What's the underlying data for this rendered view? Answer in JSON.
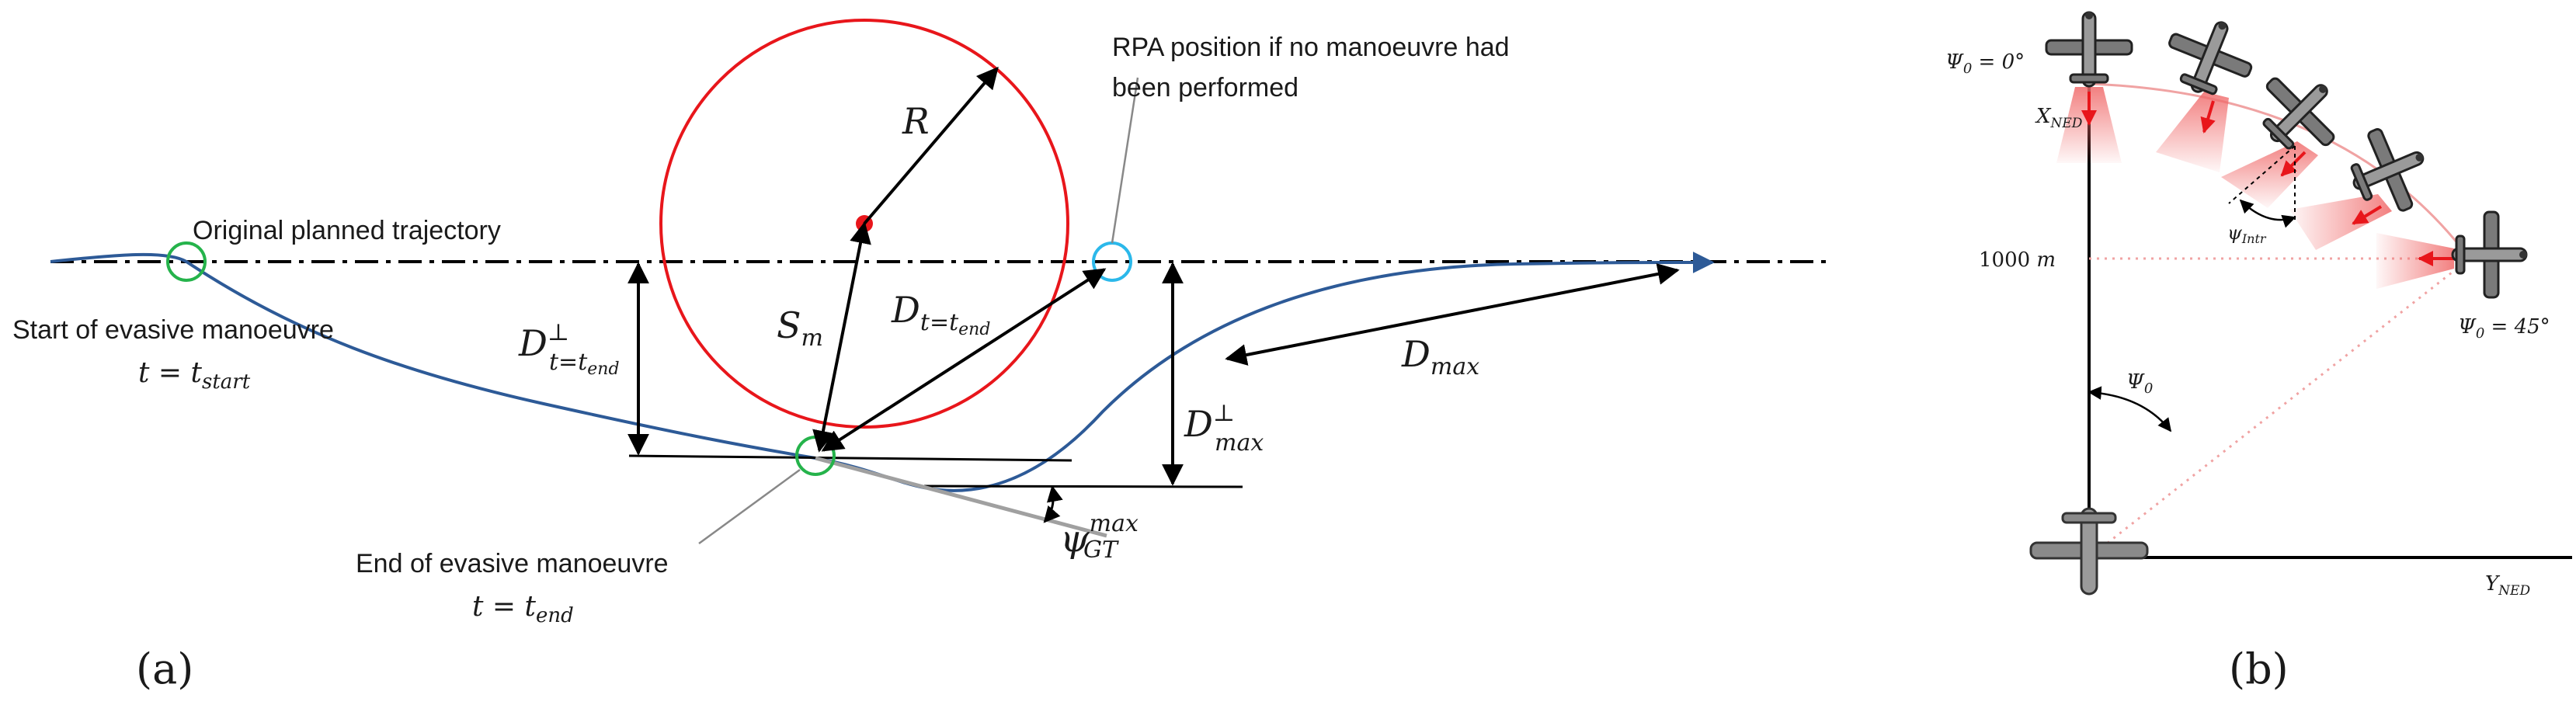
{
  "panel_a": {
    "label": "(a)",
    "original_trajectory": "Original planned trajectory",
    "start": {
      "line1": "Start of evasive manoeuvre",
      "line2": "t = t",
      "sub": "start"
    },
    "end": {
      "line1": "End of evasive manoeuvre",
      "line2": "t = t",
      "sub": "end"
    },
    "rpa_note": {
      "line1": "RPA position if no manoeuvre had",
      "line2": "been performed"
    },
    "math": {
      "R": "R",
      "S": "S",
      "S_sub": "m",
      "Dt": "D",
      "Dt_sub": "t=t",
      "Dt_subsub": "end",
      "Dperp": "D",
      "Dperp_sup": "⊥",
      "Dperp_sub": "t=t",
      "Dperp_subsub": "end",
      "Dmax": "D",
      "Dmax_sub": "max",
      "Dperpmax": "D",
      "Dperpmax_sup": "⊥",
      "Dperpmax_sub": "max",
      "psi": "ψ",
      "psi_sup": "max",
      "psi_sub": "GT"
    },
    "colors": {
      "circle": "#e8161b",
      "trajectory": "#2d5a97",
      "start_marker": "#25b34b",
      "rpa_marker": "#2bb8ea",
      "center": "#e8161b"
    }
  },
  "panel_b": {
    "label": "(b)",
    "psi0_top": {
      "sym": "Ψ",
      "sub": "0",
      "rest": " = 0°"
    },
    "psi0_bottom": {
      "sym": "Ψ",
      "sub": "0",
      "rest": " = 45°"
    },
    "x_axis": {
      "sym": "X",
      "sub": "NED"
    },
    "y_axis": {
      "sym": "Y",
      "sub": "NED"
    },
    "distance": {
      "value": "1000",
      "unit": " m"
    },
    "psi_intr": {
      "sym": "ψ",
      "sub": "Intr"
    },
    "psi0_angle": {
      "sym": "Ψ",
      "sub": "0"
    },
    "colors": {
      "arc": "#f0a3a3",
      "arrow": "#e8161b",
      "cone": "#f06a6a"
    }
  }
}
